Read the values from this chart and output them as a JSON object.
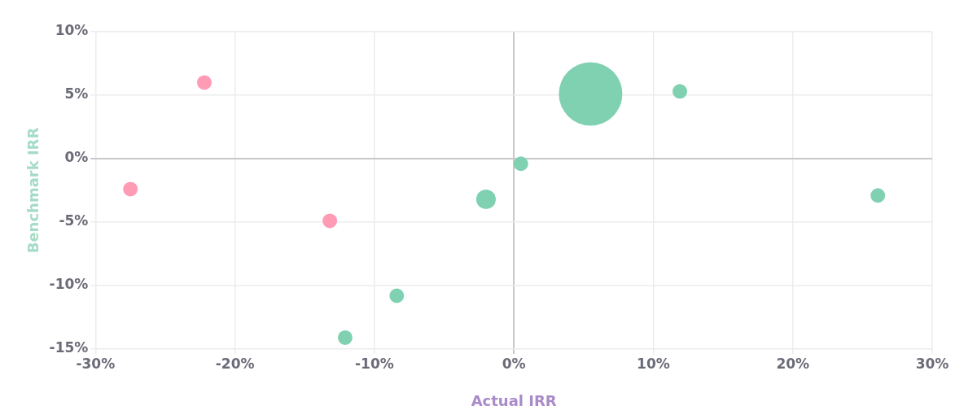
{
  "chart_data": {
    "type": "bubble",
    "xlabel": "Actual IRR",
    "ylabel": "Benchmark IRR",
    "x": [
      -22.2,
      -27.5,
      -13.2,
      -12.1,
      -8.4,
      -2.0,
      0.5,
      5.5,
      11.9,
      26.1
    ],
    "series": [
      {
        "values": [
          6.0,
          -2.4,
          -4.9,
          -14.1,
          -10.8,
          -3.2,
          -0.4,
          5.1,
          5.3,
          -2.9
        ],
        "sizes": [
          0.053,
          0.053,
          0.053,
          0.053,
          0.053,
          0.095,
          0.053,
          1,
          0.053,
          0.053
        ],
        "colors": [
          "#ff9bb5",
          "#ff9bb5",
          "#ff9bb5",
          "#7fd1b2",
          "#7fd1b2",
          "#7fd1b2",
          "#7fd1b2",
          "#7fd1b2",
          "#7fd1b2",
          "#7fd1b2"
        ]
      }
    ],
    "xlim": [
      -30,
      30
    ],
    "ylim": [
      -15,
      10
    ],
    "xticks": [
      {
        "value": -30,
        "label": "-30%"
      },
      {
        "value": -20,
        "label": "-20%"
      },
      {
        "value": -10,
        "label": "-10%"
      },
      {
        "value": 0,
        "label": "0%"
      },
      {
        "value": 10,
        "label": "10%"
      },
      {
        "value": 20,
        "label": "20%"
      },
      {
        "value": 30,
        "label": "30%"
      }
    ],
    "yticks": [
      {
        "value": -15,
        "label": "-15%"
      },
      {
        "value": -10,
        "label": "-10%"
      },
      {
        "value": -5,
        "label": "-5%"
      },
      {
        "value": 0,
        "label": "0%"
      },
      {
        "value": 5,
        "label": "5%"
      },
      {
        "value": 10,
        "label": "10%"
      }
    ],
    "grid": true,
    "legend": false
  }
}
